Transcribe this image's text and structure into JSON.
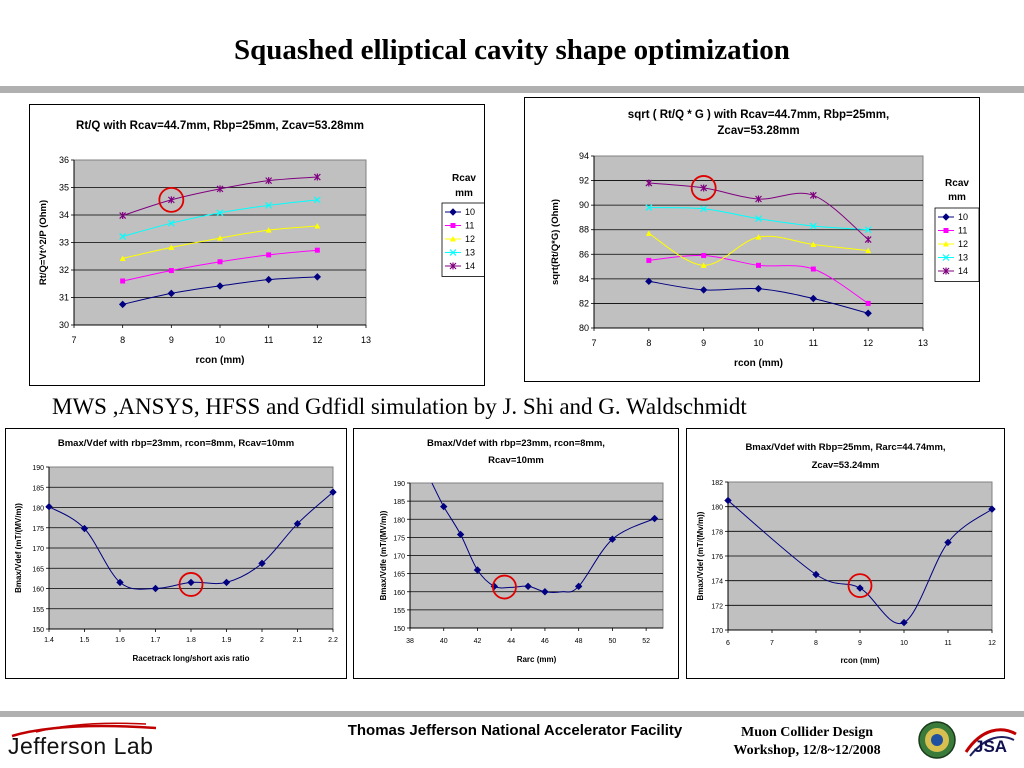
{
  "slide": {
    "title": "Squashed elliptical cavity shape optimization",
    "subtitle": "MWS ,ANSYS, HFSS and Gdfidl simulation by J. Shi and G. Waldschmidt",
    "footer_center": "Thomas Jefferson National Accelerator Facility",
    "footer_right_line1": "Muon Collider Design",
    "footer_right_line2": "Workshop, 12/8~12/2008",
    "logo_text": "Jefferson Lab",
    "jsa_text": "JSA"
  },
  "colors": {
    "plot_bg": "#c0c0c0",
    "highlight_circle": "#e00000",
    "series_10": "#000080",
    "series_11": "#ff00ff",
    "series_12": "#ffff00",
    "series_13": "#00ffff",
    "series_14": "#800080",
    "single_series": "#000080"
  },
  "chart_data": [
    {
      "type": "line",
      "title": [
        "Rt/Q with Rcav=44.7mm, Rbp=25mm, Zcav=53.28mm"
      ],
      "xlabel": "rcon (mm)",
      "ylabel": "Rt/Q=Vt^2/P (Ohm)",
      "xlim": [
        7,
        13
      ],
      "ylim": [
        30,
        36
      ],
      "xticks": [
        7,
        8,
        9,
        10,
        11,
        12,
        13
      ],
      "yticks": [
        30,
        31,
        32,
        33,
        34,
        35,
        36
      ],
      "legend_title": [
        "Rcav",
        "mm"
      ],
      "legend_placement": "right",
      "grid": true,
      "highlight": {
        "x": 9,
        "y": 34.55
      },
      "series": [
        {
          "name": "10",
          "color": "#000080",
          "marker": "diamond",
          "x": [
            8,
            9,
            10,
            11,
            12
          ],
          "y": [
            30.75,
            31.15,
            31.42,
            31.65,
            31.75
          ]
        },
        {
          "name": "11",
          "color": "#ff00ff",
          "marker": "square",
          "x": [
            8,
            9,
            10,
            11,
            12
          ],
          "y": [
            31.6,
            31.98,
            32.3,
            32.55,
            32.72
          ]
        },
        {
          "name": "12",
          "color": "#ffff00",
          "marker": "triangle",
          "x": [
            8,
            9,
            10,
            11,
            12
          ],
          "y": [
            32.42,
            32.82,
            33.16,
            33.45,
            33.6
          ]
        },
        {
          "name": "13",
          "color": "#00ffff",
          "marker": "x",
          "x": [
            8,
            9,
            10,
            11,
            12
          ],
          "y": [
            33.22,
            33.7,
            34.08,
            34.35,
            34.55
          ]
        },
        {
          "name": "14",
          "color": "#800080",
          "marker": "star",
          "x": [
            8,
            9,
            10,
            11,
            12
          ],
          "y": [
            33.98,
            34.55,
            34.95,
            35.25,
            35.38
          ]
        }
      ]
    },
    {
      "type": "line",
      "title": [
        "sqrt ( Rt/Q * G ) with Rcav=44.7mm, Rbp=25mm,",
        "Zcav=53.28mm"
      ],
      "xlabel": "rcon (mm)",
      "ylabel": "sqrt(Rt/Q*G) (Ohm)",
      "xlim": [
        7,
        13
      ],
      "ylim": [
        80,
        94
      ],
      "xticks": [
        7,
        8,
        9,
        10,
        11,
        12,
        13
      ],
      "yticks": [
        80,
        82,
        84,
        86,
        88,
        90,
        92,
        94
      ],
      "legend_title": [
        "Rcav",
        "mm"
      ],
      "legend_placement": "right",
      "grid": true,
      "highlight": {
        "x": 9,
        "y": 91.4
      },
      "series": [
        {
          "name": "10",
          "color": "#000080",
          "marker": "diamond",
          "x": [
            8,
            9,
            10,
            11,
            12
          ],
          "y": [
            83.8,
            83.1,
            83.2,
            82.4,
            81.2
          ]
        },
        {
          "name": "11",
          "color": "#ff00ff",
          "marker": "square",
          "x": [
            8,
            9,
            10,
            11,
            12
          ],
          "y": [
            85.5,
            85.9,
            85.1,
            84.8,
            82.0
          ]
        },
        {
          "name": "12",
          "color": "#ffff00",
          "marker": "triangle",
          "x": [
            8,
            9,
            10,
            11,
            12
          ],
          "y": [
            87.7,
            85.1,
            87.4,
            86.8,
            86.3
          ]
        },
        {
          "name": "13",
          "color": "#00ffff",
          "marker": "x",
          "x": [
            8,
            9,
            10,
            11,
            12
          ],
          "y": [
            89.8,
            89.7,
            88.9,
            88.3,
            88.0
          ]
        },
        {
          "name": "14",
          "color": "#800080",
          "marker": "star",
          "x": [
            8,
            9,
            10,
            11,
            12
          ],
          "y": [
            91.8,
            91.4,
            90.5,
            90.8,
            87.2
          ]
        }
      ]
    },
    {
      "type": "line",
      "title": [
        "Bmax/Vdef with rbp=23mm, rcon=8mm, Rcav=10mm"
      ],
      "xlabel": "Racetrack long/short axis ratio",
      "ylabel": "Bmax/Vdef (mT/(MV/m))",
      "xlim": [
        1.4,
        2.2
      ],
      "ylim": [
        150,
        190
      ],
      "xticks": [
        "1.4",
        "1.5",
        "1.6",
        "1.7",
        "1.8",
        "1.9",
        "2",
        "2.1",
        "2.2"
      ],
      "yticks": [
        150,
        155,
        160,
        165,
        170,
        175,
        180,
        185,
        190
      ],
      "grid": true,
      "highlight": {
        "x": 1.8,
        "y": 161
      },
      "series": [
        {
          "color": "#000080",
          "marker": "diamond",
          "x": [
            1.4,
            1.5,
            1.6,
            1.7,
            1.8,
            1.9,
            2.0,
            2.1,
            2.2
          ],
          "y": [
            180.2,
            174.8,
            161.5,
            160.0,
            161.5,
            161.5,
            166.2,
            176.0,
            183.8
          ]
        }
      ]
    },
    {
      "type": "line",
      "title": [
        "Bmax/Vdef with rbp=23mm, rcon=8mm,",
        "Rcav=10mm"
      ],
      "xlabel": "Rarc (mm)",
      "ylabel": "Bmax/Vdfe (mT/(MV/m))",
      "xlim": [
        38,
        53
      ],
      "ylim": [
        150,
        190
      ],
      "xticks": [
        38,
        40,
        42,
        44,
        46,
        48,
        50,
        52
      ],
      "yticks": [
        150,
        155,
        160,
        165,
        170,
        175,
        180,
        185,
        190
      ],
      "grid": true,
      "highlight": {
        "x": 43.6,
        "y": 161.3
      },
      "series": [
        {
          "color": "#000080",
          "marker": "diamond",
          "x": [
            39.3,
            40,
            41,
            42,
            43,
            44,
            45,
            46,
            47,
            48,
            50,
            52.5
          ],
          "y": [
            190,
            183.5,
            175.8,
            166,
            161.5,
            161.2,
            161.5,
            160,
            160,
            161.5,
            174.5,
            180.2
          ],
          "markers": [
            false,
            true,
            true,
            true,
            true,
            false,
            true,
            true,
            false,
            true,
            true,
            true
          ]
        }
      ]
    },
    {
      "type": "line",
      "title": [
        "Bmax/Vdef with Rbp=25mm, Rarc=44.74mm,",
        "Zcav=53.24mm"
      ],
      "xlabel": "rcon (mm)",
      "ylabel": "Bmax/Vdef (mT/(Mv/m))",
      "xlim": [
        6,
        12
      ],
      "ylim": [
        170,
        182
      ],
      "xticks": [
        6,
        7,
        8,
        9,
        10,
        11,
        12
      ],
      "yticks": [
        170,
        172,
        174,
        176,
        178,
        180,
        182
      ],
      "grid": true,
      "highlight": {
        "x": 9,
        "y": 173.6
      },
      "series": [
        {
          "color": "#000080",
          "marker": "diamond",
          "x": [
            6,
            8,
            9,
            10,
            11,
            12
          ],
          "y": [
            180.5,
            174.5,
            173.4,
            170.6,
            177.1,
            179.8
          ]
        }
      ]
    }
  ]
}
